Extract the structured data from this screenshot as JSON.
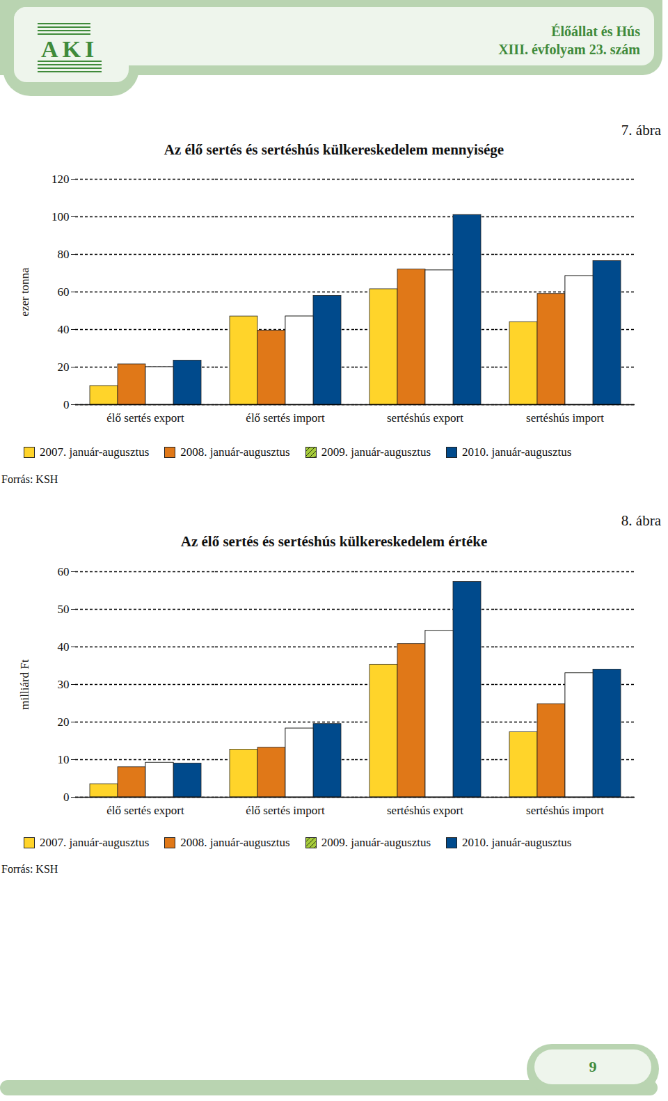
{
  "page": {
    "logo": "AKI",
    "header_title": "Élőállat és Hús",
    "header_issue": "XIII. évfolyam 23. szám",
    "page_number": "9"
  },
  "chart_data": [
    {
      "type": "bar",
      "title": "Az élő sertés és sertéshús külkereskedelem mennyisége",
      "annotations": {
        "figure": "7. ábra",
        "source": "Forrás: KSH"
      },
      "y_label": "ezer tonna",
      "categories": [
        "élő sertés export",
        "élő sertés import",
        "sertéshús export",
        "sertéshús import"
      ],
      "series": [
        {
          "name": "2007. január-augusztus",
          "color": "#ffd42a",
          "line_style": "solid",
          "values": [
            10,
            47,
            61.5,
            44
          ]
        },
        {
          "name": "2008. január-augusztus",
          "color": "#e07818",
          "line_style": "solid",
          "values": [
            21.5,
            39.5,
            72,
            59
          ]
        },
        {
          "name": "2009. január-augusztus",
          "color": "#a6cb3c",
          "line_style": "hatched",
          "values": [
            20,
            47,
            71.5,
            68.5
          ]
        },
        {
          "name": "2010. január-augusztus",
          "color": "#004a8c",
          "line_style": "solid",
          "values": [
            23.5,
            58,
            101,
            76.5
          ]
        }
      ],
      "ylim": [
        0,
        120
      ],
      "yticks": [
        0,
        20,
        40,
        60,
        80,
        100,
        120
      ],
      "grid": true,
      "legend": "bottom"
    },
    {
      "type": "bar",
      "title": "Az élő sertés és sertéshús külkereskedelem értéke",
      "annotations": {
        "figure": "8. ábra",
        "source": "Forrás: KSH"
      },
      "y_label": "milliárd Ft",
      "categories": [
        "élő sertés export",
        "élő sertés import",
        "sertéshús export",
        "sertéshús import"
      ],
      "series": [
        {
          "name": "2007. január-augusztus",
          "color": "#ffd42a",
          "line_style": "solid",
          "values": [
            3.5,
            12.7,
            35.3,
            17.3
          ]
        },
        {
          "name": "2008. január-augusztus",
          "color": "#e07818",
          "line_style": "solid",
          "values": [
            8,
            13.2,
            40.8,
            24.8
          ]
        },
        {
          "name": "2009. január-augusztus",
          "color": "#a6cb3c",
          "line_style": "hatched",
          "values": [
            9.2,
            18.3,
            44.3,
            33
          ]
        },
        {
          "name": "2010. január-augusztus",
          "color": "#004a8c",
          "line_style": "solid",
          "values": [
            9,
            19.5,
            57.3,
            34
          ]
        }
      ],
      "ylim": [
        0,
        60
      ],
      "yticks": [
        0,
        10,
        20,
        30,
        40,
        50,
        60
      ],
      "grid": true,
      "legend": "bottom"
    }
  ]
}
